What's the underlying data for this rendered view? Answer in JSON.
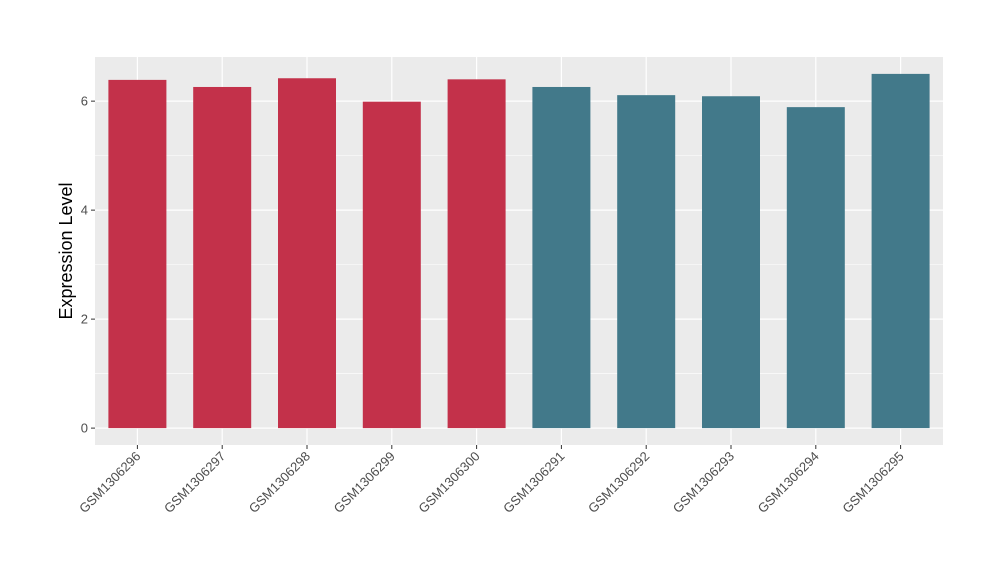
{
  "chart_data": {
    "type": "bar",
    "title": "",
    "xlabel": "",
    "ylabel": "Expression Level",
    "categories": [
      "GSM1306296",
      "GSM1306297",
      "GSM1306298",
      "GSM1306299",
      "GSM1306300",
      "GSM1306291",
      "GSM1306292",
      "GSM1306293",
      "GSM1306294",
      "GSM1306295"
    ],
    "values": [
      6.39,
      6.26,
      6.42,
      5.99,
      6.4,
      6.26,
      6.11,
      6.09,
      5.89,
      6.5
    ],
    "bar_colors": [
      "#C3314A",
      "#C3314A",
      "#C3314A",
      "#C3314A",
      "#C3314A",
      "#42798A",
      "#42798A",
      "#42798A",
      "#42798A",
      "#42798A"
    ],
    "yticks": [
      0,
      2,
      4,
      6
    ],
    "ylim": [
      -0.31,
      6.81
    ],
    "grid": true,
    "panel_background": "#EBEBEB"
  }
}
